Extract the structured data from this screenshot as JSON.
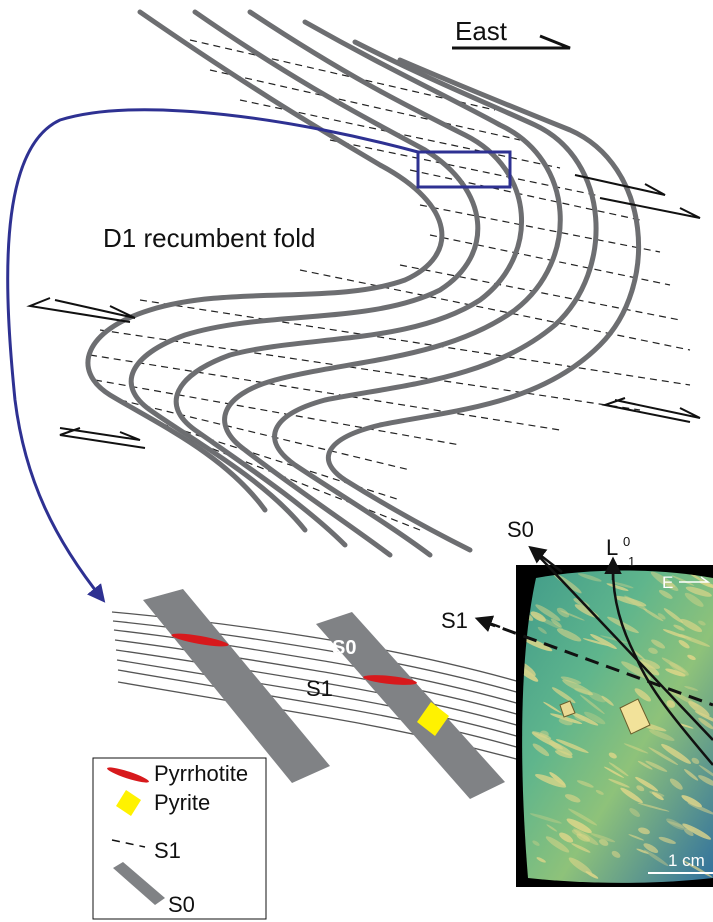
{
  "diagram": {
    "direction_label": "East",
    "fold_label": "D1 recumbent fold",
    "block": {
      "s0_label": "S0",
      "s1_label": "S1"
    },
    "photo": {
      "s0_label": "S0",
      "s1_label": "S1",
      "lineation_letter": "L",
      "lineation_super": "0",
      "lineation_sub": "1",
      "east_label": "E",
      "scale_label": "1 cm"
    },
    "legend": {
      "pyrrhotite": "Pyrrhotite",
      "pyrite": "Pyrite",
      "s1": "S1",
      "s0": "S0"
    }
  },
  "colors": {
    "bedding": "#6d6e71",
    "cleavage": "#222222",
    "inset_box": "#2e3192",
    "pyrrhotite": "#d7191c",
    "pyrite": "#fff200",
    "photo_bg": "#000000"
  }
}
